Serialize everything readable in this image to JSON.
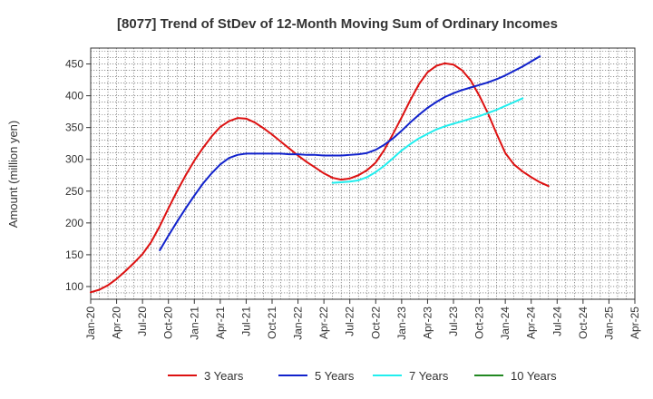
{
  "chart_data": {
    "type": "line",
    "title": "[8077]  Trend of StDev of 12-Month Moving Sum of Ordinary Incomes",
    "xlabel": "",
    "ylabel": "Amount (million yen)",
    "ylim": [
      80,
      475
    ],
    "yticks": [
      100,
      150,
      200,
      250,
      300,
      350,
      400,
      450
    ],
    "x_start": "Jan-20",
    "x_tick_labels": [
      "Jan-20",
      "Apr-20",
      "Jul-20",
      "Oct-20",
      "Jan-21",
      "Apr-21",
      "Jul-21",
      "Oct-21",
      "Jan-22",
      "Apr-22",
      "Jul-22",
      "Oct-22",
      "Jan-23",
      "Apr-23",
      "Jul-23",
      "Oct-23",
      "Jan-24",
      "Apr-24",
      "Jul-24",
      "Oct-24",
      "Jan-25",
      "Apr-25"
    ],
    "x_range_months": [
      0,
      63
    ],
    "grid": true,
    "legend_position": "bottom",
    "series": [
      {
        "name": "3 Years",
        "color": "#dd1111",
        "points": [
          [
            0,
            91
          ],
          [
            1,
            95
          ],
          [
            2,
            102
          ],
          [
            3,
            112
          ],
          [
            4,
            124
          ],
          [
            5,
            137
          ],
          [
            6,
            151
          ],
          [
            7,
            170
          ],
          [
            8,
            195
          ],
          [
            9,
            223
          ],
          [
            10,
            250
          ],
          [
            11,
            275
          ],
          [
            12,
            298
          ],
          [
            13,
            318
          ],
          [
            14,
            336
          ],
          [
            15,
            351
          ],
          [
            16,
            360
          ],
          [
            17,
            365
          ],
          [
            18,
            364
          ],
          [
            19,
            358
          ],
          [
            20,
            349
          ],
          [
            21,
            339
          ],
          [
            22,
            328
          ],
          [
            23,
            317
          ],
          [
            24,
            306
          ],
          [
            25,
            296
          ],
          [
            26,
            287
          ],
          [
            27,
            278
          ],
          [
            28,
            271
          ],
          [
            29,
            268
          ],
          [
            30,
            270
          ],
          [
            31,
            275
          ],
          [
            32,
            283
          ],
          [
            33,
            295
          ],
          [
            34,
            315
          ],
          [
            35,
            340
          ],
          [
            36,
            366
          ],
          [
            37,
            393
          ],
          [
            38,
            418
          ],
          [
            39,
            437
          ],
          [
            40,
            447
          ],
          [
            41,
            451
          ],
          [
            42,
            449
          ],
          [
            43,
            440
          ],
          [
            44,
            424
          ],
          [
            45,
            400
          ],
          [
            46,
            372
          ],
          [
            47,
            340
          ],
          [
            48,
            310
          ],
          [
            49,
            292
          ],
          [
            50,
            281
          ],
          [
            51,
            272
          ],
          [
            52,
            264
          ],
          [
            53,
            258
          ]
        ]
      },
      {
        "name": "5 Years",
        "color": "#1122cc",
        "points": [
          [
            8,
            157
          ],
          [
            9,
            180
          ],
          [
            10,
            202
          ],
          [
            11,
            223
          ],
          [
            12,
            243
          ],
          [
            13,
            262
          ],
          [
            14,
            278
          ],
          [
            15,
            292
          ],
          [
            16,
            302
          ],
          [
            17,
            307
          ],
          [
            18,
            309
          ],
          [
            19,
            309
          ],
          [
            20,
            309
          ],
          [
            21,
            309
          ],
          [
            22,
            309
          ],
          [
            23,
            308
          ],
          [
            24,
            308
          ],
          [
            25,
            307
          ],
          [
            26,
            307
          ],
          [
            27,
            306
          ],
          [
            28,
            306
          ],
          [
            29,
            306
          ],
          [
            30,
            307
          ],
          [
            31,
            308
          ],
          [
            32,
            310
          ],
          [
            33,
            315
          ],
          [
            34,
            323
          ],
          [
            35,
            333
          ],
          [
            36,
            345
          ],
          [
            37,
            358
          ],
          [
            38,
            370
          ],
          [
            39,
            381
          ],
          [
            40,
            390
          ],
          [
            41,
            398
          ],
          [
            42,
            404
          ],
          [
            43,
            409
          ],
          [
            44,
            413
          ],
          [
            45,
            417
          ],
          [
            46,
            421
          ],
          [
            47,
            426
          ],
          [
            48,
            432
          ],
          [
            49,
            439
          ],
          [
            50,
            446
          ],
          [
            51,
            454
          ],
          [
            52,
            462
          ]
        ]
      },
      {
        "name": "7 Years",
        "color": "#22eeee",
        "points": [
          [
            28,
            263
          ],
          [
            29,
            264
          ],
          [
            30,
            265
          ],
          [
            31,
            267
          ],
          [
            32,
            272
          ],
          [
            33,
            280
          ],
          [
            34,
            290
          ],
          [
            35,
            302
          ],
          [
            36,
            314
          ],
          [
            37,
            324
          ],
          [
            38,
            333
          ],
          [
            39,
            340
          ],
          [
            40,
            347
          ],
          [
            41,
            352
          ],
          [
            42,
            356
          ],
          [
            43,
            360
          ],
          [
            44,
            364
          ],
          [
            45,
            368
          ],
          [
            46,
            373
          ],
          [
            47,
            378
          ],
          [
            48,
            384
          ],
          [
            49,
            390
          ],
          [
            50,
            396
          ]
        ]
      },
      {
        "name": "10 Years",
        "color": "#228822",
        "points": []
      }
    ]
  }
}
